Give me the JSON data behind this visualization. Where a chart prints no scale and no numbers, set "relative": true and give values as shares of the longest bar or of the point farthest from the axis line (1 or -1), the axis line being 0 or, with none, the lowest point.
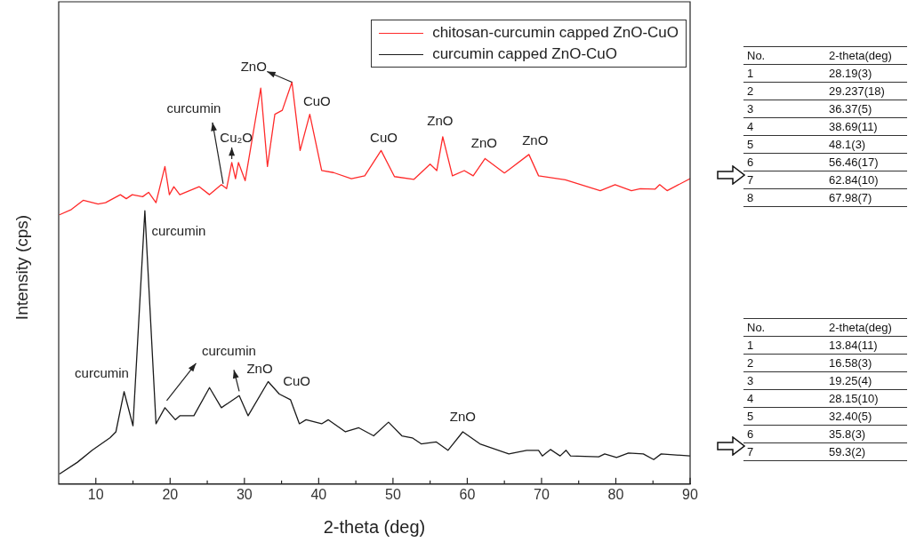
{
  "chart_data": {
    "type": "line",
    "relative": true,
    "xlabel": "2-theta (deg)",
    "ylabel": "Intensity (cps)",
    "xlim": [
      5,
      90
    ],
    "xticks": [
      10,
      {
        "value": 15,
        "label": null
      },
      20,
      {
        "value": 25,
        "label": null
      },
      30,
      {
        "value": 35,
        "label": null
      },
      40,
      {
        "value": 45,
        "label": null
      },
      50,
      {
        "value": 55,
        "label": null
      },
      60,
      {
        "value": 65,
        "label": null
      },
      70,
      {
        "value": 75,
        "label": null
      },
      80,
      {
        "value": 85,
        "label": null
      },
      90
    ],
    "legend": "top right",
    "grid": false,
    "series": [
      {
        "name": "chitosan-curcumin capped ZnO-CuO",
        "color": "#ff2a2a",
        "x": [
          5.1,
          6.7,
          8.3,
          10.3,
          11.3,
          13.3,
          14.1,
          14.9,
          16.3,
          17.1,
          18.1,
          19.3,
          19.9,
          20.5,
          21.3,
          23.9,
          25.3,
          26.9,
          27.6,
          28.3,
          28.8,
          29.2,
          30.1,
          32.2,
          33.1,
          34.1,
          35.1,
          36.4,
          37.5,
          38.8,
          40.4,
          42.0,
          44.4,
          46.2,
          48.4,
          50.2,
          52.8,
          55.0,
          55.9,
          56.7,
          58.0,
          59.6,
          60.8,
          62.4,
          65.0,
          65.8,
          68.3,
          69.6,
          73.2,
          77.9,
          79.9,
          82.1,
          83.3,
          85.3,
          85.9,
          86.9,
          90
        ],
        "values": [
          0.67,
          0.683,
          0.706,
          0.697,
          0.7,
          0.72,
          0.71,
          0.72,
          0.715,
          0.726,
          0.7,
          0.79,
          0.72,
          0.74,
          0.72,
          0.74,
          0.72,
          0.745,
          0.735,
          0.8,
          0.76,
          0.8,
          0.755,
          0.985,
          0.79,
          0.92,
          0.93,
          1,
          0.83,
          0.92,
          0.78,
          0.775,
          0.76,
          0.767,
          0.83,
          0.765,
          0.758,
          0.796,
          0.78,
          0.864,
          0.767,
          0.78,
          0.767,
          0.81,
          0.774,
          0.785,
          0.82,
          0.767,
          0.757,
          0.73,
          0.745,
          0.73,
          0.735,
          0.734,
          0.745,
          0.73,
          0.76
        ]
      },
      {
        "name": "curcumin capped ZnO-CuO",
        "color": "#1a1a1a",
        "x": [
          5.1,
          7.5,
          9.5,
          11.9,
          12.7,
          13.8,
          15.0,
          16.6,
          18.1,
          19.3,
          20.7,
          21.3,
          23.2,
          25.3,
          26.9,
          29.3,
          30.5,
          33.2,
          34.7,
          36.2,
          37.4,
          38.3,
          40.4,
          41.3,
          43.6,
          45.4,
          47.4,
          49.4,
          51.2,
          52.6,
          53.8,
          55.8,
          57.4,
          59.4,
          61.7,
          65.6,
          68.0,
          69.6,
          70.1,
          71.2,
          72.5,
          73.3,
          73.9,
          77.7,
          78.5,
          80.1,
          81.7,
          83.7,
          85.1,
          86.1,
          90
        ],
        "values": [
          0.025,
          0.054,
          0.084,
          0.115,
          0.13,
          0.23,
          0.145,
          0.68,
          0.15,
          0.19,
          0.16,
          0.17,
          0.17,
          0.24,
          0.19,
          0.22,
          0.17,
          0.255,
          0.224,
          0.21,
          0.15,
          0.16,
          0.15,
          0.16,
          0.13,
          0.14,
          0.12,
          0.154,
          0.12,
          0.115,
          0.1,
          0.105,
          0.084,
          0.13,
          0.1,
          0.075,
          0.084,
          0.084,
          0.07,
          0.086,
          0.07,
          0.084,
          0.07,
          0.068,
          0.075,
          0.066,
          0.077,
          0.075,
          0.061,
          0.075,
          0.07
        ]
      }
    ],
    "annotations": [
      {
        "text": "ZnO",
        "x": 36.4,
        "y": 1
      },
      {
        "text": "CuO",
        "x": 38.8,
        "y": 0.92
      },
      {
        "text": "curcumin",
        "x": 26.9,
        "y": 0.745
      },
      {
        "text": "Cu₂O",
        "x": 28.3,
        "y": 0.8
      },
      {
        "text": "CuO",
        "x": 48.4,
        "y": 0.83
      },
      {
        "text": "ZnO",
        "x": 56.7,
        "y": 0.864
      },
      {
        "text": "ZnO",
        "x": 62.4,
        "y": 0.81
      },
      {
        "text": "ZnO",
        "x": 68.3,
        "y": 0.82
      },
      {
        "text": "curcumin",
        "x": 13.8,
        "y": 0.23
      },
      {
        "text": "curcumin",
        "x": 16.6,
        "y": 0.68
      },
      {
        "text": "curcumin",
        "x": 19.3,
        "y": 0.19
      },
      {
        "text": "ZnO",
        "x": 29.3,
        "y": 0.22
      },
      {
        "text": "CuO",
        "x": 33.2,
        "y": 0.255
      },
      {
        "text": "ZnO",
        "x": 59.4,
        "y": 0.13
      },
      "No.",
      "2-theta(deg)",
      "1",
      "28.19(3)",
      "2",
      "29.237(18)",
      "3",
      "36.37(5)",
      "4",
      "38.69(11)",
      "5",
      "48.1(3)",
      "6",
      "56.46(17)",
      "7",
      "62.84(10)",
      "8",
      "67.98(7)",
      "No.",
      "2-theta(deg)",
      "1",
      "13.84(11)",
      "2",
      "16.58(3)",
      "3",
      "19.25(4)",
      "4",
      "28.15(10)",
      "5",
      "32.40(5)",
      "6",
      "35.8(3)",
      "7",
      "59.3(2)"
    ]
  }
}
